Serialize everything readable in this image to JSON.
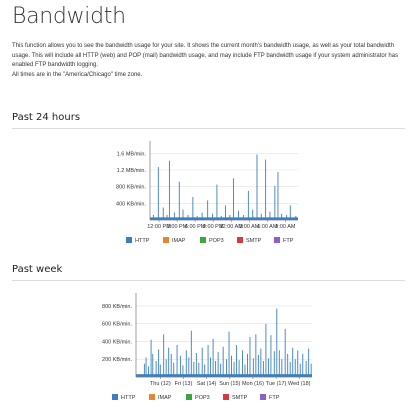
{
  "page": {
    "title": "Bandwidth",
    "intro": "This function allows you to see the bandwidth usage for your site. It shows the current month's bandwidth usage, as well as your total bandwidth usage. This will include all HTTP (web) and POP (mail) bandwidth usage, and may include FTP bandwidth usage if your system administrator has enabled FTP bandwidth logging.",
    "timezone_note": "All times are in the \"America/Chicago\" time zone."
  },
  "sections": [
    {
      "title": "Past 24 hours"
    },
    {
      "title": "Past week"
    }
  ],
  "colors": {
    "HTTP": "#3a7fc1",
    "IMAP": "#e8862d",
    "POP3": "#3aa73c",
    "SMTP": "#d9393e",
    "FTP": "#8e5fc7",
    "grid": "#e2e2e2",
    "axis": "#777777"
  },
  "chart_data": [
    {
      "type": "bar",
      "title": "Past 24 hours",
      "y_tick_labels": [
        "1.6 MB/min.",
        "1.2 MB/min.",
        "800 KB/min.",
        "400 KB/min."
      ],
      "y_tick_values": [
        1.6,
        1.2,
        0.8,
        0.4
      ],
      "ylim": [
        0,
        1.8
      ],
      "y_unit": "MB/min.",
      "x_tick_labels": [
        "12:00 PM",
        "3:00 PM",
        "6:00 PM",
        "9:00 PM",
        "12:00 AM",
        "3:00 AM",
        "6:00 AM",
        "9:00 AM"
      ],
      "legend": [
        "HTTP",
        "IMAP",
        "POP3",
        "SMTP",
        "FTP"
      ],
      "legend_position": "bottom",
      "grid": true,
      "series": [
        {
          "name": "HTTP",
          "points": [
            [
              0.4,
              0.12
            ],
            [
              1.2,
              1.27
            ],
            [
              2.0,
              0.3
            ],
            [
              2.6,
              0.12
            ],
            [
              3.0,
              1.42
            ],
            [
              3.8,
              0.18
            ],
            [
              4.6,
              0.92
            ],
            [
              5.2,
              0.25
            ],
            [
              6.0,
              0.12
            ],
            [
              6.8,
              0.55
            ],
            [
              7.5,
              0.1
            ],
            [
              8.3,
              0.18
            ],
            [
              9.2,
              0.47
            ],
            [
              10.0,
              0.15
            ],
            [
              10.7,
              0.85
            ],
            [
              11.4,
              0.1
            ],
            [
              12.1,
              0.35
            ],
            [
              12.8,
              0.12
            ],
            [
              13.4,
              1.0
            ],
            [
              14.2,
              0.22
            ],
            [
              15.0,
              0.12
            ],
            [
              15.8,
              0.7
            ],
            [
              16.5,
              0.25
            ],
            [
              17.2,
              1.57
            ],
            [
              17.9,
              0.15
            ],
            [
              18.6,
              1.45
            ],
            [
              19.3,
              0.2
            ],
            [
              20.1,
              0.82
            ],
            [
              20.6,
              1.15
            ],
            [
              21.2,
              0.15
            ],
            [
              22.0,
              0.12
            ],
            [
              22.6,
              0.35
            ],
            [
              23.5,
              0.1
            ]
          ]
        }
      ]
    },
    {
      "type": "bar",
      "title": "Past week",
      "y_tick_labels": [
        "800 KB/min.",
        "600 KB/min.",
        "400 KB/min.",
        "200 KB/min."
      ],
      "y_tick_values": [
        800,
        600,
        400,
        200
      ],
      "ylim": [
        0,
        900
      ],
      "y_unit": "KB/min.",
      "x_tick_labels": [
        "Thu (12)",
        "Fri (13)",
        "Sat (14)",
        "Sun (15)",
        "Mon (16)",
        "Tue (17)",
        "Wed (18)"
      ],
      "legend": [
        "HTTP",
        "IMAP",
        "POP3",
        "SMTP",
        "FTP"
      ],
      "legend_position": "bottom",
      "grid": true,
      "series": [
        {
          "name": "HTTP",
          "points": [
            [
              0.0,
              150
            ],
            [
              0.2,
              220
            ],
            [
              0.5,
              120
            ],
            [
              0.8,
              420
            ],
            [
              1.0,
              260
            ],
            [
              1.4,
              180
            ],
            [
              1.7,
              310
            ],
            [
              1.9,
              140
            ],
            [
              2.3,
              480
            ],
            [
              2.6,
              200
            ],
            [
              2.9,
              330
            ],
            [
              3.2,
              260
            ],
            [
              3.5,
              160
            ],
            [
              3.9,
              360
            ],
            [
              4.3,
              240
            ],
            [
              4.6,
              130
            ],
            [
              5.0,
              300
            ],
            [
              5.3,
              220
            ],
            [
              5.6,
              520
            ],
            [
              5.9,
              170
            ],
            [
              6.2,
              270
            ],
            [
              6.5,
              160
            ],
            [
              6.9,
              330
            ],
            [
              7.2,
              140
            ],
            [
              7.6,
              360
            ],
            [
              7.9,
              220
            ],
            [
              8.2,
              430
            ],
            [
              8.5,
              180
            ],
            [
              8.8,
              280
            ],
            [
              9.1,
              150
            ],
            [
              9.4,
              340
            ],
            [
              9.8,
              200
            ],
            [
              10.1,
              510
            ],
            [
              10.4,
              240
            ],
            [
              10.7,
              170
            ],
            [
              11.0,
              360
            ],
            [
              11.3,
              190
            ],
            [
              11.7,
              300
            ],
            [
              12.0,
              140
            ],
            [
              12.3,
              260
            ],
            [
              12.6,
              450
            ],
            [
              13.0,
              210
            ],
            [
              13.3,
              480
            ],
            [
              13.6,
              250
            ],
            [
              13.9,
              320
            ],
            [
              14.2,
              180
            ],
            [
              14.5,
              600
            ],
            [
              14.8,
              210
            ],
            [
              15.1,
              470
            ],
            [
              15.5,
              290
            ],
            [
              15.8,
              770
            ],
            [
              16.1,
              300
            ],
            [
              16.4,
              200
            ],
            [
              16.8,
              540
            ],
            [
              17.1,
              260
            ],
            [
              17.4,
              170
            ],
            [
              17.7,
              330
            ],
            [
              18.0,
              200
            ],
            [
              18.3,
              300
            ],
            [
              18.6,
              150
            ],
            [
              18.9,
              260
            ],
            [
              19.3,
              180
            ],
            [
              19.6,
              320
            ],
            [
              19.9,
              150
            ]
          ]
        }
      ]
    }
  ]
}
